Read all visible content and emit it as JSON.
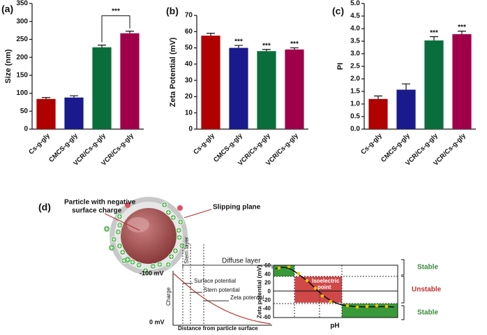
{
  "chart_data": [
    {
      "type": "bar",
      "panel": "(a)",
      "ylabel": "Size (nm)",
      "categories": [
        "Cs-g-gly",
        "CMCS-g-gly",
        "VCR/Cs-g-gly",
        "VCR/Cs-g-gly"
      ],
      "values": [
        84,
        88,
        228,
        267
      ],
      "errors": [
        4,
        5,
        6,
        6
      ],
      "colors": [
        "#b00000",
        "#1a1a8c",
        "#0a6e3c",
        "#a0004a"
      ],
      "ylim": [
        0,
        350
      ],
      "yticks": [
        0,
        50,
        100,
        150,
        200,
        250,
        300,
        350
      ],
      "bracket": {
        "text": "***",
        "from": 2,
        "to": 3
      }
    },
    {
      "type": "bar",
      "panel": "(b)",
      "ylabel": "Zeta Potential (mV)",
      "categories": [
        "Cs-g-gly",
        "CMCS-g-gly",
        "VCR/Cs-g-gly",
        "VCR/Cs-g-gly"
      ],
      "values": [
        57.5,
        50,
        48,
        49
      ],
      "errors": [
        1.5,
        1.5,
        1,
        1
      ],
      "colors": [
        "#b00000",
        "#1a1a8c",
        "#0a6e3c",
        "#a0004a"
      ],
      "ylim": [
        0,
        70
      ],
      "yticks": [
        0,
        10,
        20,
        30,
        40,
        50,
        60,
        70
      ],
      "significance": [
        null,
        "***",
        "***",
        "***"
      ]
    },
    {
      "type": "bar",
      "panel": "(c)",
      "ylabel": "PI",
      "categories": [
        "Cs-g-gly",
        "CMCS-g-gly",
        "VCR/Cs-g-gly",
        "VCR/Cs-g-gly"
      ],
      "values": [
        1.2,
        1.57,
        3.53,
        3.78
      ],
      "errors": [
        0.12,
        0.23,
        0.15,
        0.12
      ],
      "colors": [
        "#b00000",
        "#1a1a8c",
        "#0a6e3c",
        "#a0004a"
      ],
      "ylim": [
        0,
        5
      ],
      "yticks": [
        {
          "value": 0,
          "label": "0.0"
        },
        {
          "value": 0.5,
          "label": "0.5"
        },
        {
          "value": 1,
          "label": "1.0"
        },
        {
          "value": 1.5,
          "label": "1.5"
        },
        {
          "value": 2,
          "label": "2.0"
        },
        {
          "value": 2.5,
          "label": "2.5"
        },
        {
          "value": 3,
          "label": "3.0"
        },
        {
          "value": 3.5,
          "label": "3.5"
        },
        {
          "value": 4,
          "label": "4.0"
        },
        {
          "value": 4.5,
          "label": "4.5"
        },
        {
          "value": 5,
          "label": "5.0"
        }
      ],
      "significance": [
        null,
        null,
        "***",
        "***"
      ]
    }
  ],
  "diagram": {
    "panel": "(d)",
    "particle_label": [
      "Particle with negative",
      "surface charge"
    ],
    "slipping_plane": "Slipping plane",
    "stern_layer": "Stern layer",
    "diffuse_layer": "Diffuse layer",
    "top_mv": "-100 mV",
    "bottom_mv": "0 mV",
    "charge": "Charge",
    "surface_potential": "Surface potential",
    "stern_potential": "Stern potential",
    "zeta_potential": "Zeta potential",
    "distance": "Distance from particle surface",
    "plot": {
      "ylabel": "Zeta potential (mV)",
      "xlabel": "pH",
      "ticks": [
        "60",
        "40",
        "20",
        "0",
        "-20",
        "-40",
        "-60"
      ],
      "isoelectric": [
        "Isoelectric",
        "point"
      ],
      "regions": [
        "Stable",
        "Unstable",
        "Stable"
      ]
    }
  }
}
